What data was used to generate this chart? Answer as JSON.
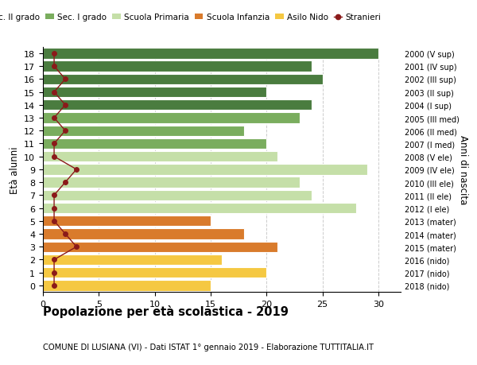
{
  "ages": [
    18,
    17,
    16,
    15,
    14,
    13,
    12,
    11,
    10,
    9,
    8,
    7,
    6,
    5,
    4,
    3,
    2,
    1,
    0
  ],
  "years": [
    "2000 (V sup)",
    "2001 (IV sup)",
    "2002 (III sup)",
    "2003 (II sup)",
    "2004 (I sup)",
    "2005 (III med)",
    "2006 (II med)",
    "2007 (I med)",
    "2008 (V ele)",
    "2009 (IV ele)",
    "2010 (III ele)",
    "2011 (II ele)",
    "2012 (I ele)",
    "2013 (mater)",
    "2014 (mater)",
    "2015 (mater)",
    "2016 (nido)",
    "2017 (nido)",
    "2018 (nido)"
  ],
  "bar_values": [
    30,
    24,
    25,
    20,
    24,
    23,
    18,
    20,
    21,
    29,
    23,
    24,
    28,
    15,
    18,
    21,
    16,
    20,
    15
  ],
  "bar_colors": [
    "#4a7c3f",
    "#4a7c3f",
    "#4a7c3f",
    "#4a7c3f",
    "#4a7c3f",
    "#7aad5e",
    "#7aad5e",
    "#7aad5e",
    "#c5dfa8",
    "#c5dfa8",
    "#c5dfa8",
    "#c5dfa8",
    "#c5dfa8",
    "#d97b2c",
    "#d97b2c",
    "#d97b2c",
    "#f5c842",
    "#f5c842",
    "#f5c842"
  ],
  "stranieri": [
    1,
    1,
    2,
    1,
    2,
    1,
    2,
    1,
    1,
    3,
    2,
    1,
    1,
    1,
    2,
    3,
    1,
    1,
    1
  ],
  "stranieri_color": "#8b1a1a",
  "legend_labels": [
    "Sec. II grado",
    "Sec. I grado",
    "Scuola Primaria",
    "Scuola Infanzia",
    "Asilo Nido",
    "Stranieri"
  ],
  "legend_colors": [
    "#4a7c3f",
    "#7aad5e",
    "#c5dfa8",
    "#d97b2c",
    "#f5c842",
    "#8b1a1a"
  ],
  "title": "Popolazione per età scolastica - 2019",
  "subtitle": "COMUNE DI LUSIANA (VI) - Dati ISTAT 1° gennaio 2019 - Elaborazione TUTTITALIA.IT",
  "ylabel_left": "Età alunni",
  "ylabel_right": "Anni di nascita",
  "xlim": [
    0,
    32
  ],
  "xticks": [
    0,
    5,
    10,
    15,
    20,
    25,
    30
  ],
  "bg_color": "#ffffff",
  "grid_color": "#cccccc",
  "bar_height": 0.82
}
